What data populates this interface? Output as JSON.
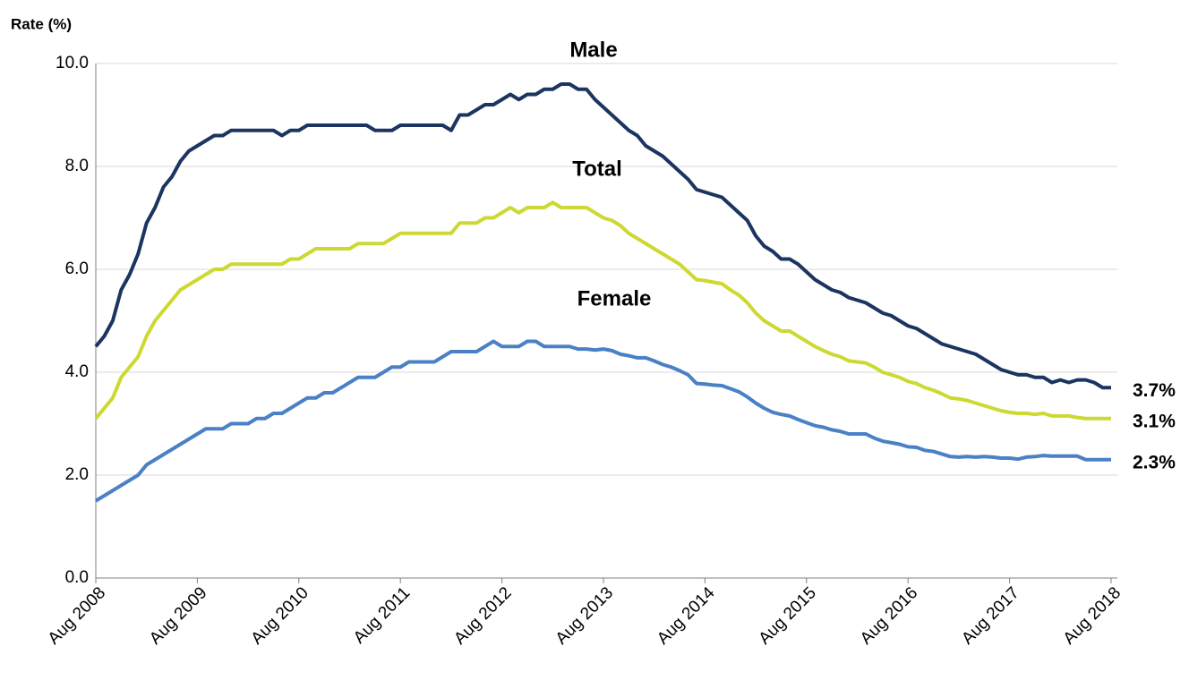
{
  "chart_data": {
    "type": "line",
    "y_axis_label": "Rate (%)",
    "categories": [
      "Aug 2008",
      null,
      null,
      null,
      null,
      null,
      null,
      null,
      null,
      null,
      null,
      null,
      "Aug 2009",
      null,
      null,
      null,
      null,
      null,
      null,
      null,
      null,
      null,
      null,
      null,
      "Aug 2010",
      null,
      null,
      null,
      null,
      null,
      null,
      null,
      null,
      null,
      null,
      null,
      "Aug 2011",
      null,
      null,
      null,
      null,
      null,
      null,
      null,
      null,
      null,
      null,
      null,
      "Aug 2012",
      null,
      null,
      null,
      null,
      null,
      null,
      null,
      null,
      null,
      null,
      null,
      "Aug 2013",
      null,
      null,
      null,
      null,
      null,
      null,
      null,
      null,
      null,
      null,
      null,
      "Aug 2014",
      null,
      null,
      null,
      null,
      null,
      null,
      null,
      null,
      null,
      null,
      null,
      "Aug 2015",
      null,
      null,
      null,
      null,
      null,
      null,
      null,
      null,
      null,
      null,
      null,
      "Aug 2016",
      null,
      null,
      null,
      null,
      null,
      null,
      null,
      null,
      null,
      null,
      null,
      "Aug 2017",
      null,
      null,
      null,
      null,
      null,
      null,
      null,
      null,
      null,
      null,
      null,
      "Aug 2018"
    ],
    "ylim": [
      0,
      10
    ],
    "yticks": [
      {
        "value": 0,
        "label": "0.0"
      },
      {
        "value": 2,
        "label": "2.0"
      },
      {
        "value": 4,
        "label": "4.0"
      },
      {
        "value": 6,
        "label": "6.0"
      },
      {
        "value": 8,
        "label": "8.0"
      },
      {
        "value": 10,
        "label": "10.0"
      }
    ],
    "grid": true,
    "series": [
      {
        "name": "Male",
        "color": "#1b3560",
        "label_color": "#1f3864",
        "values": [
          4.5,
          4.7,
          5.0,
          5.6,
          5.9,
          6.3,
          6.9,
          7.2,
          7.6,
          7.8,
          8.1,
          8.3,
          8.4,
          8.5,
          8.6,
          8.6,
          8.7,
          8.7,
          8.7,
          8.7,
          8.7,
          8.7,
          8.6,
          8.7,
          8.7,
          8.8,
          8.8,
          8.8,
          8.8,
          8.8,
          8.8,
          8.8,
          8.8,
          8.7,
          8.7,
          8.7,
          8.8,
          8.8,
          8.8,
          8.8,
          8.8,
          8.8,
          8.7,
          9.0,
          9.0,
          9.1,
          9.2,
          9.2,
          9.3,
          9.4,
          9.3,
          9.4,
          9.4,
          9.5,
          9.5,
          9.6,
          9.6,
          9.5,
          9.5,
          9.3,
          9.15,
          9.0,
          8.85,
          8.7,
          8.6,
          8.4,
          8.3,
          8.2,
          8.05,
          7.9,
          7.75,
          7.55,
          7.5,
          7.45,
          7.4,
          7.25,
          7.1,
          6.95,
          6.65,
          6.45,
          6.35,
          6.2,
          6.2,
          6.1,
          5.95,
          5.8,
          5.7,
          5.6,
          5.55,
          5.45,
          5.4,
          5.35,
          5.25,
          5.15,
          5.1,
          5.0,
          4.9,
          4.85,
          4.75,
          4.65,
          4.55,
          4.5,
          4.45,
          4.4,
          4.35,
          4.25,
          4.15,
          4.05,
          4.0,
          3.95,
          3.95,
          3.9,
          3.9,
          3.8,
          3.85,
          3.8,
          3.85,
          3.85,
          3.8,
          3.7,
          3.7
        ],
        "value_labels": [
          null,
          null,
          null,
          null,
          null,
          null,
          null,
          null,
          null,
          null,
          null,
          null,
          null,
          null,
          null,
          null,
          null,
          null,
          null,
          null,
          null,
          null,
          null,
          null,
          null,
          null,
          null,
          null,
          null,
          null,
          null,
          null,
          null,
          null,
          null,
          null,
          null,
          null,
          null,
          null,
          null,
          null,
          null,
          null,
          null,
          null,
          null,
          null,
          null,
          null,
          null,
          null,
          null,
          null,
          null,
          null,
          null,
          null,
          null,
          null,
          null,
          null,
          null,
          null,
          null,
          null,
          null,
          null,
          null,
          null,
          null,
          null,
          null,
          null,
          null,
          null,
          null,
          null,
          null,
          null,
          null,
          null,
          null,
          null,
          null,
          null,
          null,
          null,
          null,
          null,
          null,
          null,
          null,
          null,
          null,
          null,
          null,
          null,
          null,
          null,
          null,
          null,
          null,
          null,
          null,
          null,
          null,
          null,
          null,
          null,
          null,
          null,
          null,
          null,
          null,
          null,
          null,
          null,
          null,
          null,
          "3.7%"
        ]
      },
      {
        "name": "Total",
        "color": "#cdd932",
        "label_color": "#c8d62e",
        "values": [
          3.1,
          3.3,
          3.5,
          3.9,
          4.1,
          4.3,
          4.7,
          5.0,
          5.2,
          5.4,
          5.6,
          5.7,
          5.8,
          5.9,
          6.0,
          6.0,
          6.1,
          6.1,
          6.1,
          6.1,
          6.1,
          6.1,
          6.1,
          6.2,
          6.2,
          6.3,
          6.4,
          6.4,
          6.4,
          6.4,
          6.4,
          6.5,
          6.5,
          6.5,
          6.5,
          6.6,
          6.7,
          6.7,
          6.7,
          6.7,
          6.7,
          6.7,
          6.7,
          6.9,
          6.9,
          6.9,
          7.0,
          7.0,
          7.1,
          7.2,
          7.1,
          7.2,
          7.2,
          7.2,
          7.3,
          7.2,
          7.2,
          7.2,
          7.2,
          7.1,
          7.0,
          6.95,
          6.85,
          6.7,
          6.6,
          6.5,
          6.4,
          6.3,
          6.2,
          6.1,
          5.95,
          5.8,
          5.78,
          5.75,
          5.72,
          5.6,
          5.5,
          5.35,
          5.15,
          5.0,
          4.9,
          4.8,
          4.8,
          4.7,
          4.6,
          4.5,
          4.42,
          4.35,
          4.3,
          4.22,
          4.2,
          4.18,
          4.1,
          4.0,
          3.95,
          3.9,
          3.82,
          3.78,
          3.7,
          3.65,
          3.58,
          3.5,
          3.48,
          3.45,
          3.4,
          3.35,
          3.3,
          3.25,
          3.22,
          3.2,
          3.2,
          3.18,
          3.2,
          3.15,
          3.15,
          3.15,
          3.12,
          3.1,
          3.1,
          3.1,
          3.1
        ],
        "value_labels": [
          null,
          null,
          null,
          null,
          null,
          null,
          null,
          null,
          null,
          null,
          null,
          null,
          null,
          null,
          null,
          null,
          null,
          null,
          null,
          null,
          null,
          null,
          null,
          null,
          null,
          null,
          null,
          null,
          null,
          null,
          null,
          null,
          null,
          null,
          null,
          null,
          null,
          null,
          null,
          null,
          null,
          null,
          null,
          null,
          null,
          null,
          null,
          null,
          null,
          null,
          null,
          null,
          null,
          null,
          null,
          null,
          null,
          null,
          null,
          null,
          null,
          null,
          null,
          null,
          null,
          null,
          null,
          null,
          null,
          null,
          null,
          null,
          null,
          null,
          null,
          null,
          null,
          null,
          null,
          null,
          null,
          null,
          null,
          null,
          null,
          null,
          null,
          null,
          null,
          null,
          null,
          null,
          null,
          null,
          null,
          null,
          null,
          null,
          null,
          null,
          null,
          null,
          null,
          null,
          null,
          null,
          null,
          null,
          null,
          null,
          null,
          null,
          null,
          null,
          null,
          null,
          null,
          null,
          null,
          null,
          "3.1%"
        ]
      },
      {
        "name": "Female",
        "color": "#4a80c6",
        "label_color": "#3a6aa8",
        "values": [
          1.5,
          1.6,
          1.7,
          1.8,
          1.9,
          2.0,
          2.2,
          2.3,
          2.4,
          2.5,
          2.6,
          2.7,
          2.8,
          2.9,
          2.9,
          2.9,
          3.0,
          3.0,
          3.0,
          3.1,
          3.1,
          3.2,
          3.2,
          3.3,
          3.4,
          3.5,
          3.5,
          3.6,
          3.6,
          3.7,
          3.8,
          3.9,
          3.9,
          3.9,
          4.0,
          4.1,
          4.1,
          4.2,
          4.2,
          4.2,
          4.2,
          4.3,
          4.4,
          4.4,
          4.4,
          4.4,
          4.5,
          4.6,
          4.5,
          4.5,
          4.5,
          4.6,
          4.6,
          4.5,
          4.5,
          4.5,
          4.5,
          4.45,
          4.45,
          4.43,
          4.45,
          4.42,
          4.35,
          4.32,
          4.28,
          4.28,
          4.22,
          4.15,
          4.1,
          4.03,
          3.95,
          3.78,
          3.77,
          3.75,
          3.74,
          3.68,
          3.62,
          3.52,
          3.4,
          3.3,
          3.22,
          3.18,
          3.15,
          3.08,
          3.02,
          2.96,
          2.93,
          2.88,
          2.85,
          2.8,
          2.8,
          2.8,
          2.72,
          2.66,
          2.63,
          2.6,
          2.55,
          2.54,
          2.48,
          2.46,
          2.41,
          2.36,
          2.35,
          2.36,
          2.35,
          2.36,
          2.35,
          2.33,
          2.33,
          2.31,
          2.35,
          2.36,
          2.38,
          2.37,
          2.37,
          2.37,
          2.37,
          2.3,
          2.3,
          2.3,
          2.3
        ],
        "value_labels": [
          null,
          null,
          null,
          null,
          null,
          null,
          null,
          null,
          null,
          null,
          null,
          null,
          null,
          null,
          null,
          null,
          null,
          null,
          null,
          null,
          null,
          null,
          null,
          null,
          null,
          null,
          null,
          null,
          null,
          null,
          null,
          null,
          null,
          null,
          null,
          null,
          null,
          null,
          null,
          null,
          null,
          null,
          null,
          null,
          null,
          null,
          null,
          null,
          null,
          null,
          null,
          null,
          null,
          null,
          null,
          null,
          null,
          null,
          null,
          null,
          null,
          null,
          null,
          null,
          null,
          null,
          null,
          null,
          null,
          null,
          null,
          null,
          null,
          null,
          null,
          null,
          null,
          null,
          null,
          null,
          null,
          null,
          null,
          null,
          null,
          null,
          null,
          null,
          null,
          null,
          null,
          null,
          null,
          null,
          null,
          null,
          null,
          null,
          null,
          null,
          null,
          null,
          null,
          null,
          null,
          null,
          null,
          null,
          null,
          null,
          null,
          null,
          null,
          null,
          null,
          null,
          null,
          null,
          null,
          null,
          "2.3%"
        ]
      }
    ]
  }
}
